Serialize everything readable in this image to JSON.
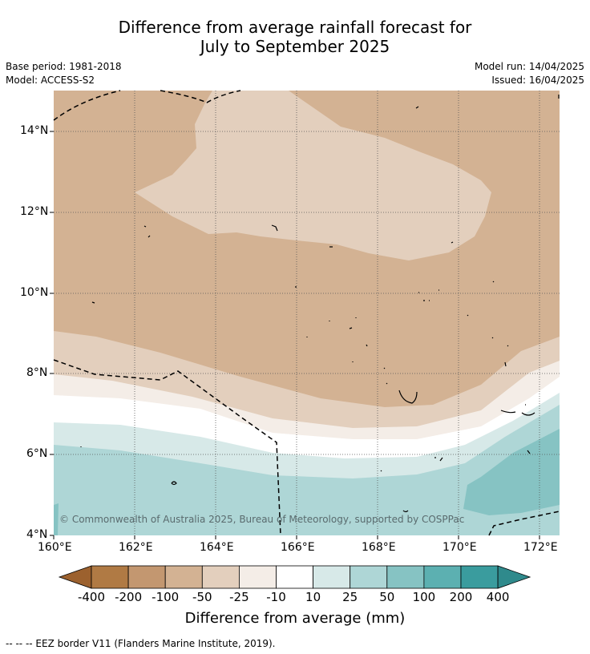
{
  "title_line1": "Difference from average rainfall forecast for",
  "title_line2": "July to September 2025",
  "base_period": "Base period: 1981-2018",
  "model": "Model: ACCESS-S2",
  "model_run": "Model run: 14/04/2025",
  "issued": "Issued: 16/04/2025",
  "copyright": "© Commonwealth of Australia 2025, Bureau of Meteorology, supported by COSPPac",
  "footer": "-- -- -- EEZ border V11 (Flanders Marine Institute, 2019).",
  "colorbar_title": "Difference from average (mm)",
  "axes": {
    "x_ticks": [
      "160°E",
      "162°E",
      "164°E",
      "166°E",
      "168°E",
      "170°E",
      "172°E"
    ],
    "y_ticks": [
      "14°N",
      "12°N",
      "10°N",
      "8°N",
      "6°N",
      "4°N"
    ]
  },
  "colorbar": {
    "labels": [
      "-400",
      "-200",
      "-100",
      "-50",
      "-25",
      "-10",
      "10",
      "25",
      "50",
      "100",
      "200",
      "400"
    ],
    "colors": [
      "#9c612e",
      "#b07a44",
      "#c39770",
      "#d3b293",
      "#e3cfbd",
      "#f4ede7",
      "#ffffff",
      "#d7e9e8",
      "#aed6d6",
      "#86c3c3",
      "#5cb0b1",
      "#3a9c9e",
      "#2f8a8c"
    ]
  },
  "map_colors": {
    "band_-50_-25": "#d3b293",
    "band_-25_-10": "#e3cfbd",
    "band_-10_+10_low": "#f4ede7",
    "near_zero": "#ffffff",
    "band_10_25": "#d7e9e8",
    "band_25_50": "#aed6d6",
    "band_50_100": "#86c3c3"
  }
}
